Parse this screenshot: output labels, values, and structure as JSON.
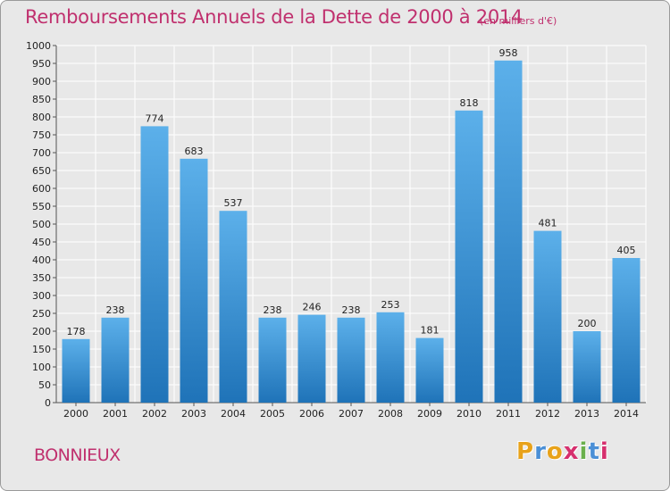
{
  "chart_data": {
    "type": "bar",
    "title": "Remboursements Annuels de la Dette de 2000 à 2014",
    "subtitle": "(en milliers d'€)",
    "xlabel": "",
    "ylabel": "",
    "categories": [
      "2000",
      "2001",
      "2002",
      "2003",
      "2004",
      "2005",
      "2006",
      "2007",
      "2008",
      "2009",
      "2010",
      "2011",
      "2012",
      "2013",
      "2014"
    ],
    "values": [
      178,
      238,
      774,
      683,
      537,
      238,
      246,
      238,
      253,
      181,
      818,
      958,
      481,
      200,
      405
    ],
    "ylim": [
      0,
      1000
    ],
    "ytick_step": 50,
    "grid": true,
    "legend": "none"
  },
  "place_name": "BONNIEUX",
  "logo": {
    "letters": [
      "P",
      "r",
      "o",
      "x",
      "i",
      "t",
      "i"
    ],
    "colors": [
      "#e8a21a",
      "#4a8fd6",
      "#e8a21a",
      "#d6306e",
      "#6ab04c",
      "#4a8fd6",
      "#d6306e"
    ]
  },
  "colors": {
    "title": "#c0306e",
    "bar_top": "#5cb0ea",
    "bar_bottom": "#1f73b8",
    "grid": "#ffffff",
    "plot_bg": "#e8e8e8"
  }
}
